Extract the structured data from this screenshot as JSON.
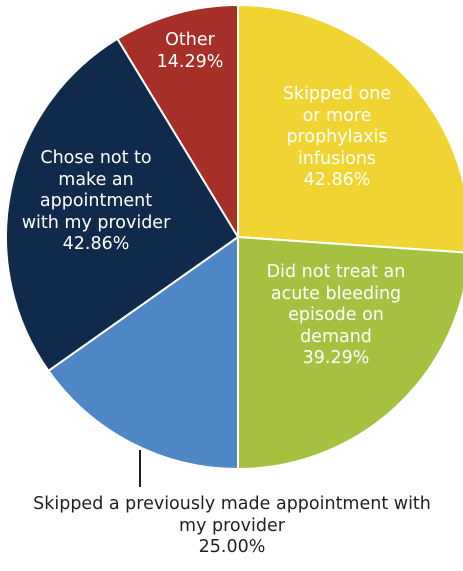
{
  "chart_data": {
    "type": "pie",
    "categories": [
      "Skipped one or more prophylaxis infusions",
      "Did not treat an acute bleeding episode on demand",
      "Skipped a previously made appointment with my provider",
      "Chose not to make an appointment with my provider",
      "Other"
    ],
    "values": [
      42.86,
      39.29,
      25.0,
      42.86,
      14.29
    ],
    "value_labels": [
      "42.86%",
      "39.29%",
      "25.00%",
      "42.86%",
      "14.29%"
    ],
    "colors": [
      "#f0d431",
      "#a5c13f",
      "#4f86c6",
      "#0f2a4a",
      "#a63027"
    ]
  }
}
